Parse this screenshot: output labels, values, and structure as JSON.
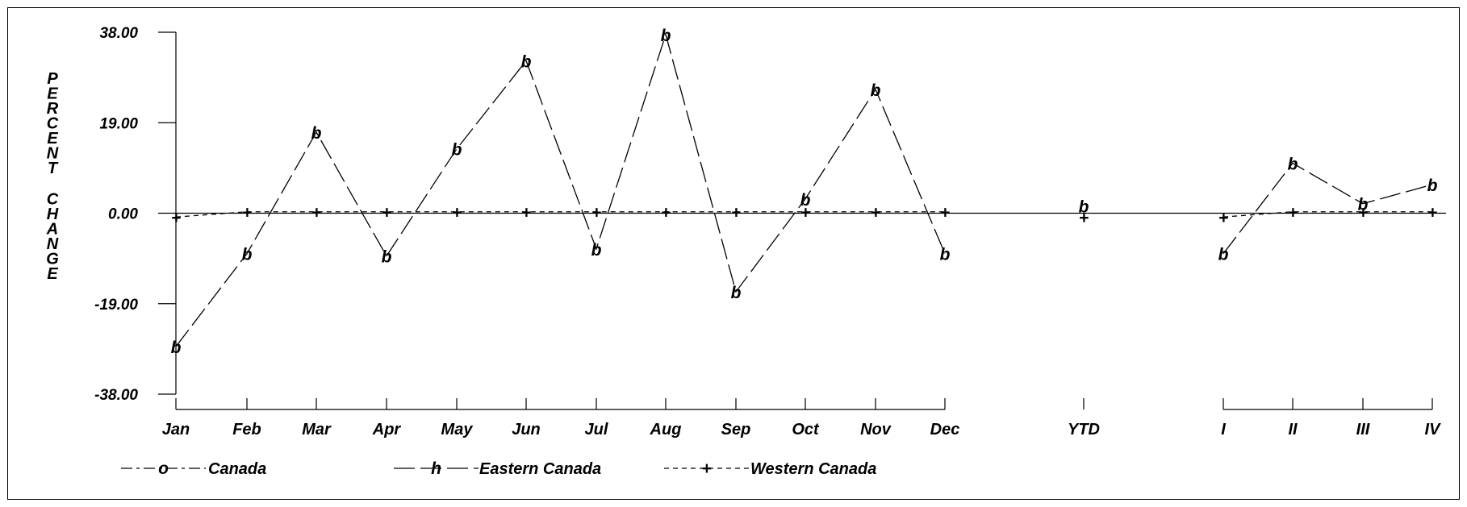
{
  "chart_data": {
    "type": "line",
    "ylabel": "PERCENT CHANGE",
    "ylim": [
      -38.0,
      38.0
    ],
    "yticks": [
      "38.00",
      "19.00",
      "0.00",
      "-19.00",
      "-38.00"
    ],
    "ytick_values": [
      38,
      19,
      0,
      -19,
      -38
    ],
    "categories": [
      "Jan",
      "Feb",
      "Mar",
      "Apr",
      "May",
      "Jun",
      "Jul",
      "Aug",
      "Sep",
      "Oct",
      "Nov",
      "Dec",
      "YTD",
      "I",
      "II",
      "III",
      "IV"
    ],
    "groups": [
      [
        "Jan",
        "Feb",
        "Mar",
        "Apr",
        "May",
        "Jun",
        "Jul",
        "Aug",
        "Sep",
        "Oct",
        "Nov",
        "Dec"
      ],
      [
        "YTD"
      ],
      [
        "I",
        "II",
        "III",
        "IV"
      ]
    ],
    "series": [
      {
        "name": "Canada",
        "legend_marker": "o",
        "style": "dash-dot",
        "values": [
          null,
          null,
          null,
          null,
          null,
          null,
          null,
          null,
          null,
          null,
          null,
          null,
          null,
          null,
          null,
          null,
          null
        ]
      },
      {
        "name": "Eastern Canada",
        "legend_marker": "h",
        "plot_marker": "b",
        "style": "long-dash",
        "values": [
          -28.0,
          -8.5,
          17.0,
          -9.0,
          13.5,
          32.0,
          -7.5,
          37.5,
          -16.5,
          3.0,
          26.0,
          -8.5,
          1.5,
          -8.5,
          10.5,
          2.0,
          6.0
        ]
      },
      {
        "name": "Western Canada",
        "legend_marker": "+",
        "plot_marker": "+",
        "style": "short-dash",
        "values": [
          -0.8,
          0.3,
          0.3,
          0.3,
          0.3,
          0.3,
          0.3,
          0.3,
          0.3,
          0.3,
          0.3,
          0.3,
          -0.8,
          -0.8,
          0.3,
          0.3,
          0.3
        ]
      }
    ],
    "legend_position": "bottom-left",
    "grid": false
  }
}
